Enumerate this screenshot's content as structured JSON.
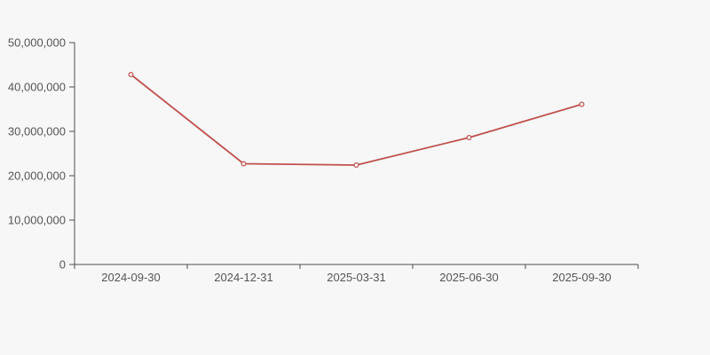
{
  "chart_data": {
    "type": "line",
    "title": "",
    "xlabel": "",
    "ylabel": "",
    "categories": [
      "2024-09-30",
      "2024-12-31",
      "2025-03-31",
      "2025-06-30",
      "2025-09-30"
    ],
    "series": [
      {
        "name": "value",
        "values": [
          42800000,
          22700000,
          22400000,
          28600000,
          36100000
        ]
      }
    ],
    "ylim": [
      0,
      50000000
    ],
    "y_ticks": [
      0,
      10000000,
      20000000,
      30000000,
      40000000,
      50000000
    ],
    "y_tick_labels": [
      "0",
      "10,000,000",
      "20,000,000",
      "30,000,000",
      "40,000,000",
      "50,000,000"
    ],
    "grid": false,
    "legend": false,
    "marker": "hollow-circle",
    "colors": {
      "background": "#f7f7f7",
      "line": "#c0504d",
      "marker_fill": "#f7f7f7",
      "axis": "#4d4d4d",
      "label": "#555555"
    }
  }
}
